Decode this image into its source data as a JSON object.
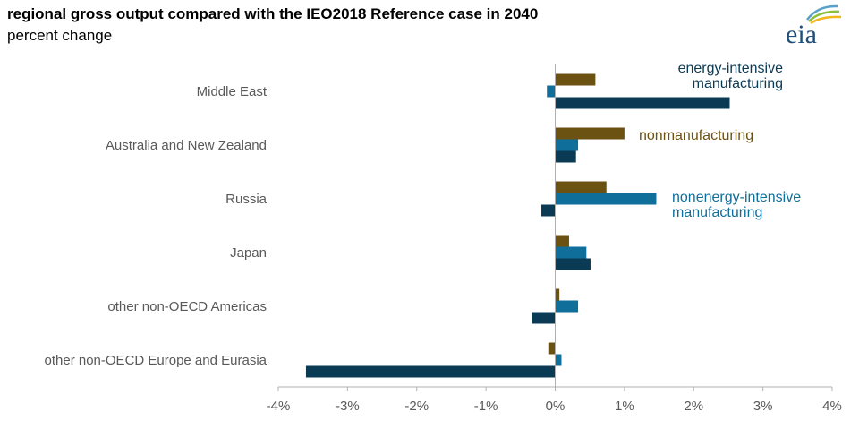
{
  "header": {
    "title": "regional gross output compared with the IEO2018 Reference case in 2040",
    "subtitle": "percent change",
    "logo_text": "eia"
  },
  "colors": {
    "nonmanufacturing": "#6b5212",
    "nonenergy_intensive": "#0f6e9a",
    "energy_intensive": "#0b3a55",
    "axis": "#b0b0b0",
    "label": "#595959"
  },
  "chart_data": {
    "type": "bar",
    "orientation": "horizontal",
    "categories": [
      "Middle East",
      "Australia and New Zealand",
      "Russia",
      "Japan",
      "other non-OECD Americas",
      "other non-OECD Europe and Eurasia"
    ],
    "series": [
      {
        "name": "nonmanufacturing",
        "color": "#6b5212",
        "values": [
          0.58,
          1.0,
          0.74,
          0.2,
          0.06,
          -0.1
        ]
      },
      {
        "name": "nonenergy-intensive manufacturing",
        "color": "#0f6e9a",
        "values": [
          -0.12,
          0.33,
          1.46,
          0.45,
          0.33,
          0.09
        ]
      },
      {
        "name": "energy-intensive manufacturing",
        "color": "#0b3a55",
        "values": [
          2.52,
          0.3,
          -0.2,
          0.51,
          -0.34,
          -3.6
        ]
      }
    ],
    "xlim": [
      -4,
      4
    ],
    "x_ticks": [
      "-4%",
      "-3%",
      "-2%",
      "-1%",
      "0%",
      "1%",
      "2%",
      "3%",
      "4%"
    ],
    "unit": "%",
    "legend": "inline labels",
    "annotations": [
      {
        "lines": [
          "energy-intensive",
          "manufacturing"
        ],
        "series": "energy-intensive manufacturing"
      },
      {
        "lines": [
          "nonmanufacturing"
        ],
        "series": "nonmanufacturing"
      },
      {
        "lines": [
          "nonenergy-intensive",
          "manufacturing"
        ],
        "series": "nonenergy-intensive manufacturing"
      }
    ],
    "grid": false
  }
}
